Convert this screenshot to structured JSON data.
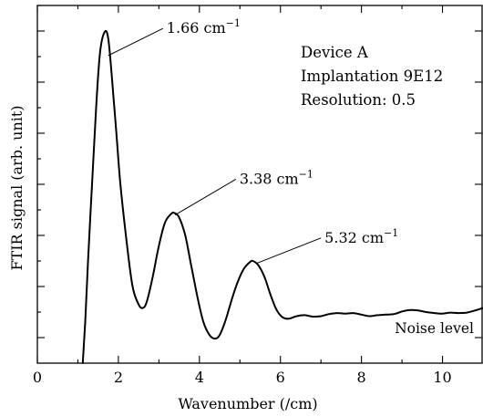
{
  "chart_data": {
    "type": "line",
    "xlabel": "Wavenumber (/cm)",
    "ylabel": "FTIR signal (arb. unit)",
    "xlim": [
      0,
      11
    ],
    "ylim": [
      -0.5,
      6.5
    ],
    "x_ticks": [
      "0",
      "2",
      "4",
      "6",
      "8",
      "10"
    ],
    "x_tick_values": [
      0,
      2,
      4,
      6,
      8,
      10
    ],
    "x_minor_ticks": [
      1,
      3,
      5,
      7,
      9
    ],
    "y_tick_values": [
      0,
      1,
      2,
      3,
      4,
      5,
      6
    ],
    "y_minor_tick_values": [
      0.5,
      1.5,
      2.5,
      3.5,
      4.5,
      5.5,
      6.5
    ],
    "y_tick_labels_shown": false,
    "grid": false,
    "info_box": {
      "line1": "Device A",
      "line2": "Implantation 9E12",
      "line3": "Resolution: 0.5"
    },
    "annotations": [
      {
        "label": "1.66 cm",
        "sup": "−1",
        "x": 1.75,
        "y": 5.52,
        "tx": 3.1,
        "ty": 6.05
      },
      {
        "label": "3.38 cm",
        "sup": "−1",
        "x": 3.4,
        "y": 2.4,
        "tx": 4.9,
        "ty": 3.1
      },
      {
        "label": "5.32 cm",
        "sup": "−1",
        "x": 5.4,
        "y": 1.45,
        "tx": 7.0,
        "ty": 1.95
      }
    ],
    "noise_label": "Noise level",
    "series": [
      {
        "color": "#000000",
        "points": [
          [
            1.12,
            -0.5
          ],
          [
            1.18,
            0.3
          ],
          [
            1.25,
            1.5
          ],
          [
            1.35,
            3.0
          ],
          [
            1.45,
            4.5
          ],
          [
            1.55,
            5.6
          ],
          [
            1.66,
            5.98
          ],
          [
            1.75,
            5.85
          ],
          [
            1.85,
            5.0
          ],
          [
            1.95,
            4.0
          ],
          [
            2.05,
            3.0
          ],
          [
            2.2,
            1.9
          ],
          [
            2.35,
            1.0
          ],
          [
            2.5,
            0.65
          ],
          [
            2.6,
            0.58
          ],
          [
            2.7,
            0.7
          ],
          [
            2.85,
            1.2
          ],
          [
            3.0,
            1.8
          ],
          [
            3.15,
            2.25
          ],
          [
            3.3,
            2.42
          ],
          [
            3.38,
            2.44
          ],
          [
            3.5,
            2.35
          ],
          [
            3.65,
            2.0
          ],
          [
            3.8,
            1.4
          ],
          [
            3.95,
            0.8
          ],
          [
            4.1,
            0.3
          ],
          [
            4.25,
            0.05
          ],
          [
            4.38,
            -0.02
          ],
          [
            4.5,
            0.05
          ],
          [
            4.65,
            0.35
          ],
          [
            4.8,
            0.75
          ],
          [
            4.95,
            1.1
          ],
          [
            5.1,
            1.35
          ],
          [
            5.25,
            1.48
          ],
          [
            5.32,
            1.5
          ],
          [
            5.45,
            1.42
          ],
          [
            5.6,
            1.2
          ],
          [
            5.75,
            0.85
          ],
          [
            5.9,
            0.55
          ],
          [
            6.05,
            0.4
          ],
          [
            6.2,
            0.37
          ],
          [
            6.4,
            0.42
          ],
          [
            6.6,
            0.44
          ],
          [
            6.8,
            0.41
          ],
          [
            7.0,
            0.42
          ],
          [
            7.2,
            0.46
          ],
          [
            7.4,
            0.48
          ],
          [
            7.6,
            0.47
          ],
          [
            7.8,
            0.48
          ],
          [
            8.0,
            0.45
          ],
          [
            8.2,
            0.42
          ],
          [
            8.4,
            0.44
          ],
          [
            8.6,
            0.45
          ],
          [
            8.8,
            0.46
          ],
          [
            9.0,
            0.51
          ],
          [
            9.2,
            0.54
          ],
          [
            9.4,
            0.53
          ],
          [
            9.6,
            0.5
          ],
          [
            9.8,
            0.48
          ],
          [
            10.0,
            0.47
          ],
          [
            10.2,
            0.49
          ],
          [
            10.4,
            0.48
          ],
          [
            10.6,
            0.49
          ],
          [
            10.8,
            0.53
          ],
          [
            11.0,
            0.58
          ]
        ]
      }
    ]
  }
}
